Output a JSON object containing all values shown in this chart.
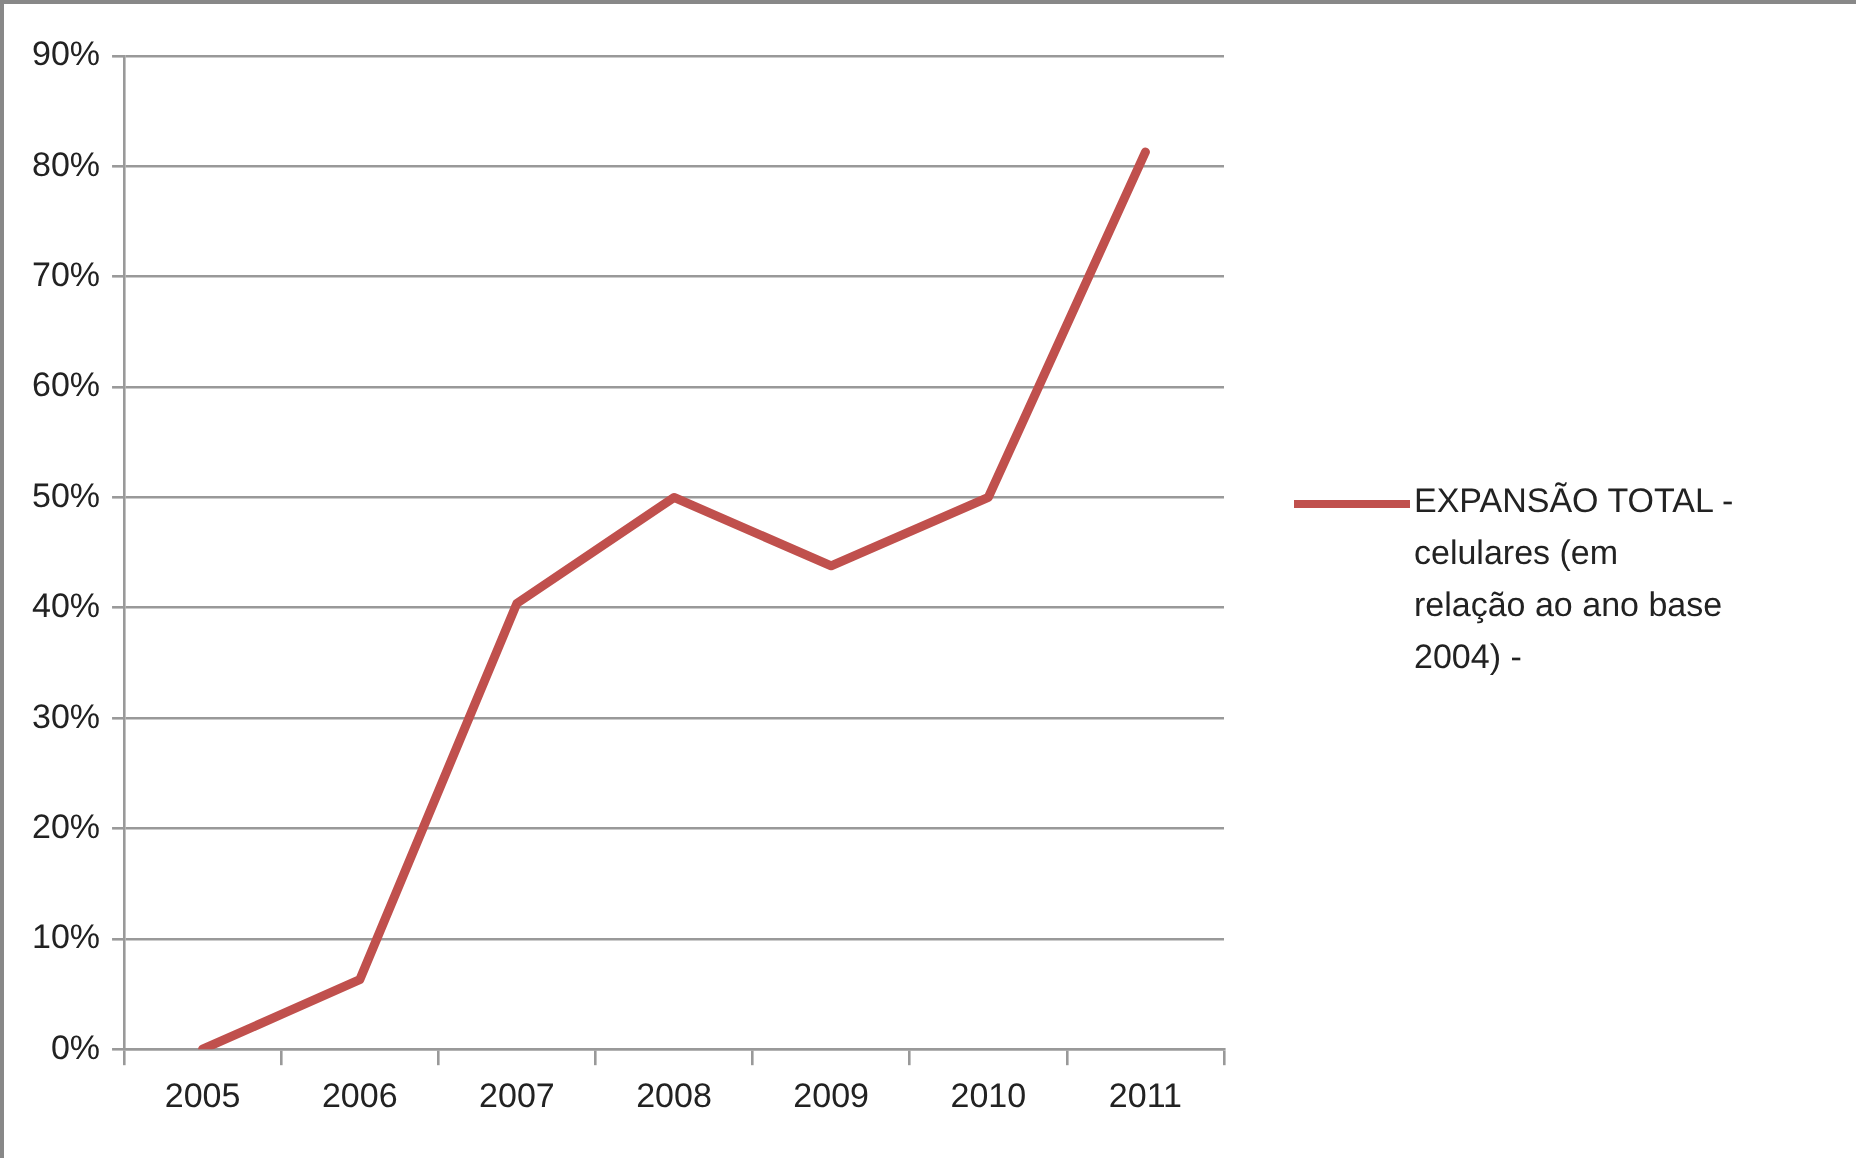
{
  "chart_data": {
    "type": "line",
    "categories": [
      "2005",
      "2006",
      "2007",
      "2008",
      "2009",
      "2010",
      "2011"
    ],
    "series": [
      {
        "name": "EXPANSÃO TOTAL - celulares (em relação ao ano base 2004) -",
        "color": "#c0504d",
        "values": [
          0,
          6.3,
          40.4,
          50,
          43.8,
          50,
          81.3
        ]
      }
    ],
    "ylim": [
      0,
      90
    ],
    "yticks": [
      {
        "value": 0,
        "label": "0%"
      },
      {
        "value": 10,
        "label": "10%"
      },
      {
        "value": 20,
        "label": "20%"
      },
      {
        "value": 30,
        "label": "30%"
      },
      {
        "value": 40,
        "label": "40%"
      },
      {
        "value": 50,
        "label": "50%"
      },
      {
        "value": 60,
        "label": "60%"
      },
      {
        "value": 70,
        "label": "70%"
      },
      {
        "value": 80,
        "label": "80%"
      },
      {
        "value": 90,
        "label": "90%"
      }
    ],
    "grid": "y",
    "legend": "right",
    "marker": "none",
    "line_style": "solid"
  }
}
